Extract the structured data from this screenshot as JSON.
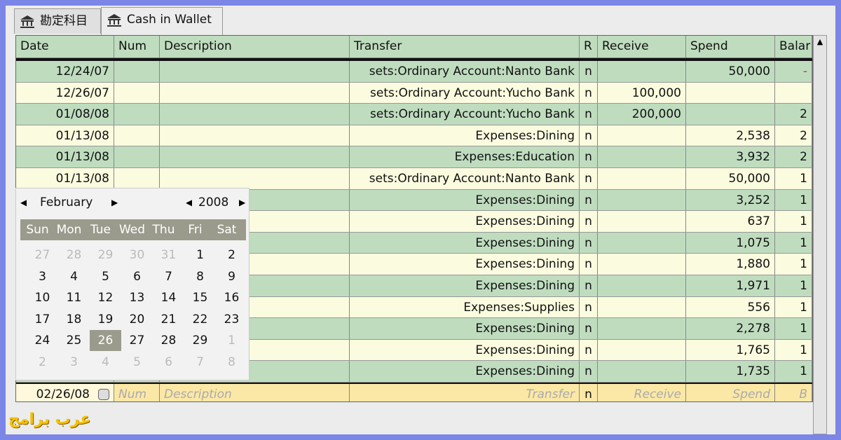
{
  "tabs": [
    "勘定科目",
    "Cash in Wallet"
  ],
  "columns": [
    "Date",
    "Num",
    "Description",
    "Transfer",
    "R",
    "Receive",
    "Spend",
    "Balar"
  ],
  "rows": [
    {
      "date": "12/24/07",
      "transfer": "sets:Ordinary Account:Nanto Bank",
      "r": "n",
      "spend": "50,000",
      "balance": "-",
      "balance_negative": true
    },
    {
      "date": "12/26/07",
      "transfer": "sets:Ordinary Account:Yucho Bank",
      "r": "n",
      "receive": "100,000"
    },
    {
      "date": "01/08/08",
      "transfer": "sets:Ordinary Account:Yucho Bank",
      "r": "n",
      "receive": "200,000",
      "balance": "2"
    },
    {
      "date": "01/13/08",
      "transfer": "Expenses:Dining",
      "r": "n",
      "spend": "2,538",
      "balance": "2"
    },
    {
      "date": "01/13/08",
      "transfer": "Expenses:Education",
      "r": "n",
      "spend": "3,932",
      "balance": "2"
    },
    {
      "date": "01/13/08",
      "transfer": "sets:Ordinary Account:Nanto Bank",
      "r": "n",
      "spend": "50,000",
      "balance": "1"
    },
    {
      "transfer": "Expenses:Dining",
      "r": "n",
      "spend": "3,252",
      "balance": "1"
    },
    {
      "transfer": "Expenses:Dining",
      "r": "n",
      "spend": "637",
      "balance": "1"
    },
    {
      "transfer": "Expenses:Dining",
      "r": "n",
      "spend": "1,075",
      "balance": "1"
    },
    {
      "transfer": "Expenses:Dining",
      "r": "n",
      "spend": "1,880",
      "balance": "1"
    },
    {
      "transfer": "Expenses:Dining",
      "r": "n",
      "spend": "1,971",
      "balance": "1"
    },
    {
      "transfer": "Expenses:Supplies",
      "r": "n",
      "spend": "556",
      "balance": "1"
    },
    {
      "transfer": "Expenses:Dining",
      "r": "n",
      "spend": "2,278",
      "balance": "1"
    },
    {
      "transfer": "Expenses:Dining",
      "r": "n",
      "spend": "1,765",
      "balance": "1"
    },
    {
      "transfer": "Expenses:Dining",
      "r": "n",
      "spend": "1,735",
      "balance": "1"
    }
  ],
  "entry": {
    "date": "02/26/08",
    "num": "Num",
    "description": "Description",
    "transfer": "Transfer",
    "r": "n",
    "receive": "Receive",
    "spend": "Spend",
    "balance": "B"
  },
  "calendar": {
    "month": "February",
    "year": "2008",
    "weekdays": [
      "Sun",
      "Mon",
      "Tue",
      "Wed",
      "Thu",
      "Fri",
      "Sat"
    ],
    "weeks": [
      [
        "27",
        "28",
        "29",
        "30",
        "31",
        "1",
        "2"
      ],
      [
        "3",
        "4",
        "5",
        "6",
        "7",
        "8",
        "9"
      ],
      [
        "10",
        "11",
        "12",
        "13",
        "14",
        "15",
        "16"
      ],
      [
        "17",
        "18",
        "19",
        "20",
        "21",
        "22",
        "23"
      ],
      [
        "24",
        "25",
        "26",
        "27",
        "28",
        "29",
        "1"
      ],
      [
        "2",
        "3",
        "4",
        "5",
        "6",
        "7",
        "8"
      ]
    ],
    "selected": "26"
  },
  "watermark": "عرب برامج"
}
